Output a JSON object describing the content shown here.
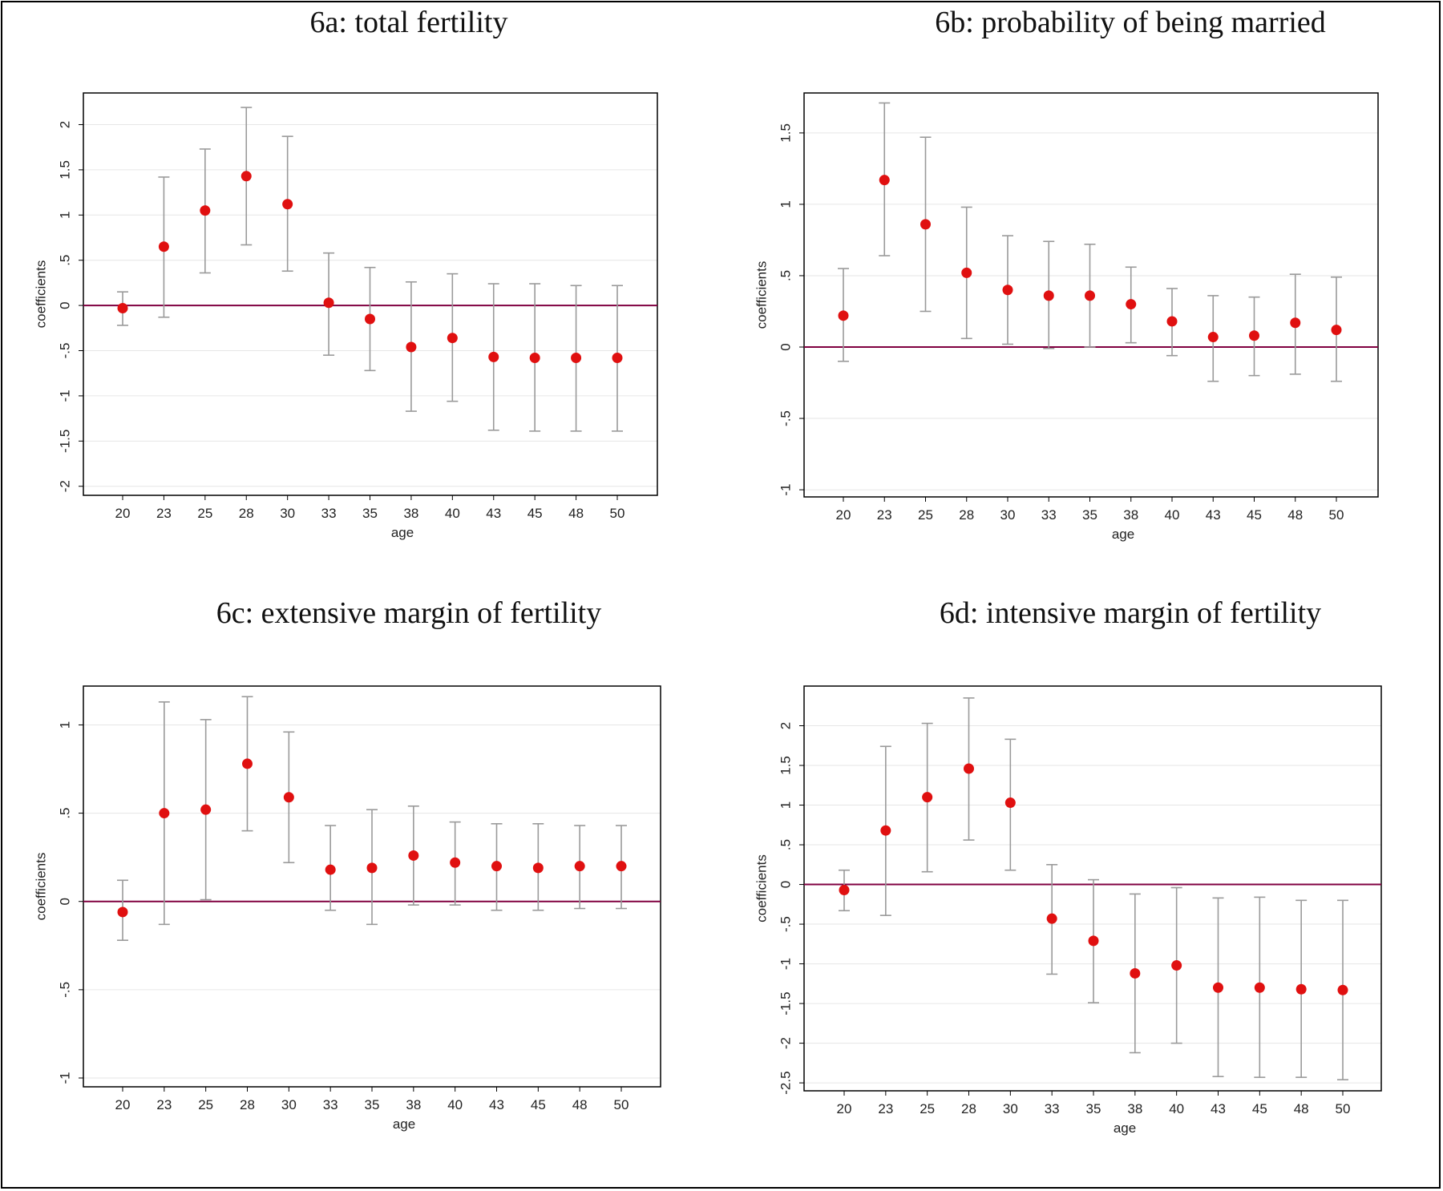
{
  "colors": {
    "point": "#e01010",
    "ci": "#9a9a9a",
    "zero_line": "#800040",
    "grid": "#e6e6e6",
    "frame": "#000000"
  },
  "chart_data": [
    {
      "type": "scatter",
      "title": "6a: total fertility",
      "xlabel": "age",
      "ylabel": "coefficients",
      "categories": [
        "20",
        "23",
        "25",
        "28",
        "30",
        "33",
        "35",
        "38",
        "40",
        "43",
        "45",
        "48",
        "50"
      ],
      "ylim": [
        -2.1,
        2.35
      ],
      "yticks": [
        -2,
        -1.5,
        -1,
        -0.5,
        0,
        0.5,
        1,
        1.5,
        2
      ],
      "ytick_labels": [
        "-2",
        "-1.5",
        "-1",
        "-.5",
        "0",
        ".5",
        "1",
        "1.5",
        "2"
      ],
      "series": [
        {
          "name": "coefficients",
          "values": [
            -0.03,
            0.65,
            1.05,
            1.43,
            1.12,
            0.03,
            -0.15,
            -0.46,
            -0.36,
            -0.57,
            -0.58,
            -0.58,
            -0.58
          ],
          "ci_low": [
            -0.22,
            -0.13,
            0.36,
            0.67,
            0.38,
            -0.55,
            -0.72,
            -1.17,
            -1.06,
            -1.38,
            -1.39,
            -1.39,
            -1.39
          ],
          "ci_high": [
            0.15,
            1.42,
            1.73,
            2.19,
            1.87,
            0.58,
            0.42,
            0.26,
            0.35,
            0.24,
            0.24,
            0.22,
            0.22
          ]
        }
      ]
    },
    {
      "type": "scatter",
      "title": "6b: probability of being married",
      "xlabel": "age",
      "ylabel": "coefficients",
      "categories": [
        "20",
        "23",
        "25",
        "28",
        "30",
        "33",
        "35",
        "38",
        "40",
        "43",
        "45",
        "48",
        "50"
      ],
      "ylim": [
        -1.05,
        1.78
      ],
      "yticks": [
        -1,
        -0.5,
        0,
        0.5,
        1,
        1.5
      ],
      "ytick_labels": [
        "-1",
        "-.5",
        "0",
        ".5",
        "1",
        "1.5"
      ],
      "series": [
        {
          "name": "coefficients",
          "values": [
            0.22,
            1.17,
            0.86,
            0.52,
            0.4,
            0.36,
            0.36,
            0.3,
            0.18,
            0.07,
            0.08,
            0.17,
            0.12
          ],
          "ci_low": [
            -0.1,
            0.64,
            0.25,
            0.06,
            0.02,
            -0.01,
            0.0,
            0.03,
            -0.06,
            -0.24,
            -0.2,
            -0.19,
            -0.24
          ],
          "ci_high": [
            0.55,
            1.71,
            1.47,
            0.98,
            0.78,
            0.74,
            0.72,
            0.56,
            0.41,
            0.36,
            0.35,
            0.51,
            0.49
          ]
        }
      ]
    },
    {
      "type": "scatter",
      "title": "6c: extensive margin of fertility",
      "xlabel": "age",
      "ylabel": "coefficients",
      "categories": [
        "20",
        "23",
        "25",
        "28",
        "30",
        "33",
        "35",
        "38",
        "40",
        "43",
        "45",
        "48",
        "50"
      ],
      "ylim": [
        -1.05,
        1.22
      ],
      "yticks": [
        -1,
        -0.5,
        0,
        0.5,
        1
      ],
      "ytick_labels": [
        "-1",
        "-.5",
        "0",
        ".5",
        "1"
      ],
      "series": [
        {
          "name": "coefficients",
          "values": [
            -0.06,
            0.5,
            0.52,
            0.78,
            0.59,
            0.18,
            0.19,
            0.26,
            0.22,
            0.2,
            0.19,
            0.2,
            0.2
          ],
          "ci_low": [
            -0.22,
            -0.13,
            0.01,
            0.4,
            0.22,
            -0.05,
            -0.13,
            -0.02,
            -0.02,
            -0.05,
            -0.05,
            -0.04,
            -0.04
          ],
          "ci_high": [
            0.12,
            1.13,
            1.03,
            1.16,
            0.96,
            0.43,
            0.52,
            0.54,
            0.45,
            0.44,
            0.44,
            0.43,
            0.43
          ]
        }
      ]
    },
    {
      "type": "scatter",
      "title": "6d: intensive margin of fertility",
      "xlabel": "age",
      "ylabel": "coefficients",
      "categories": [
        "20",
        "23",
        "25",
        "28",
        "30",
        "33",
        "35",
        "38",
        "40",
        "43",
        "45",
        "48",
        "50"
      ],
      "ylim": [
        -2.6,
        2.5
      ],
      "yticks": [
        -2.5,
        -2,
        -1.5,
        -1,
        -0.5,
        0,
        0.5,
        1,
        1.5,
        2
      ],
      "ytick_labels": [
        "-2.5",
        "-2",
        "-1.5",
        "-1",
        "-.5",
        "0",
        ".5",
        "1",
        "1.5",
        "2"
      ],
      "series": [
        {
          "name": "coefficients",
          "values": [
            -0.07,
            0.68,
            1.1,
            1.46,
            1.03,
            -0.43,
            -0.71,
            -1.12,
            -1.02,
            -1.3,
            -1.3,
            -1.32,
            -1.33
          ],
          "ci_low": [
            -0.33,
            -0.39,
            0.16,
            0.56,
            0.18,
            -1.13,
            -1.49,
            -2.12,
            -2.0,
            -2.42,
            -2.43,
            -2.43,
            -2.46
          ],
          "ci_high": [
            0.18,
            1.74,
            2.03,
            2.35,
            1.83,
            0.25,
            0.06,
            -0.12,
            -0.04,
            -0.17,
            -0.16,
            -0.2,
            -0.2
          ]
        }
      ]
    }
  ]
}
